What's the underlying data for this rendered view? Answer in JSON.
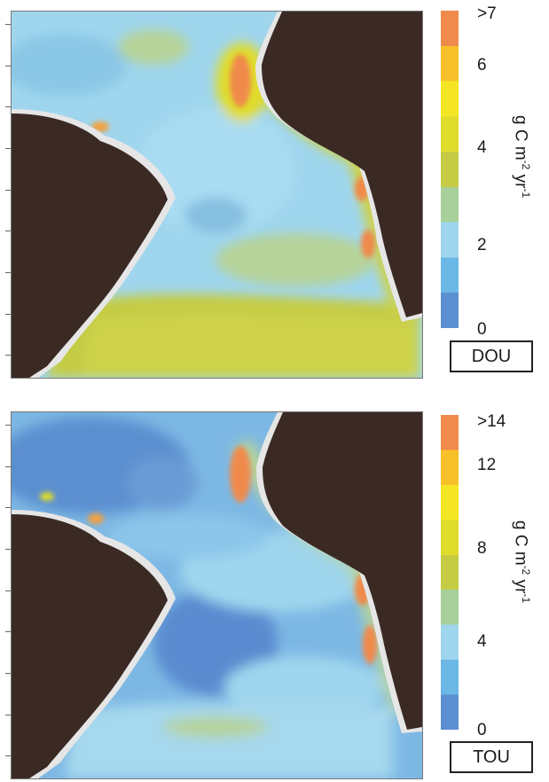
{
  "panels": [
    {
      "label": "DOU",
      "unit": {
        "base": "g C m",
        "exp1": "-2",
        "mid": " yr",
        "exp2": "-1"
      },
      "colorbar": {
        "tick_labels": [
          ">7",
          "6",
          "4",
          "2",
          "0"
        ],
        "tick_values": [
          7,
          6,
          4,
          2,
          0
        ],
        "min": 0,
        "max": 7.5,
        "colors": [
          "#5b8fd0",
          "#6bb8e6",
          "#9fd6ee",
          "#a8d09a",
          "#c5cc44",
          "#e0dc2c",
          "#f4e624",
          "#f7c12a",
          "#f08a4c"
        ]
      }
    },
    {
      "label": "TOU",
      "unit": {
        "base": "g C m",
        "exp1": "-2",
        "mid": " yr",
        "exp2": "-1"
      },
      "colorbar": {
        "tick_labels": [
          ">14",
          "12",
          "8",
          "4",
          "0"
        ],
        "tick_values": [
          14,
          12,
          8,
          4,
          0
        ],
        "min": 0,
        "max": 15,
        "colors": [
          "#5b8fd0",
          "#6bb8e6",
          "#9fd6ee",
          "#a8d09a",
          "#c5cc44",
          "#e0dc2c",
          "#f4e624",
          "#f7c12a",
          "#f08a4c"
        ]
      }
    }
  ],
  "map_colors": {
    "land": "#3b2a24",
    "coast": "#e6e6e6",
    "ocean_top": "#9fd2ee",
    "ocean_bottom": "#78b4e4"
  }
}
